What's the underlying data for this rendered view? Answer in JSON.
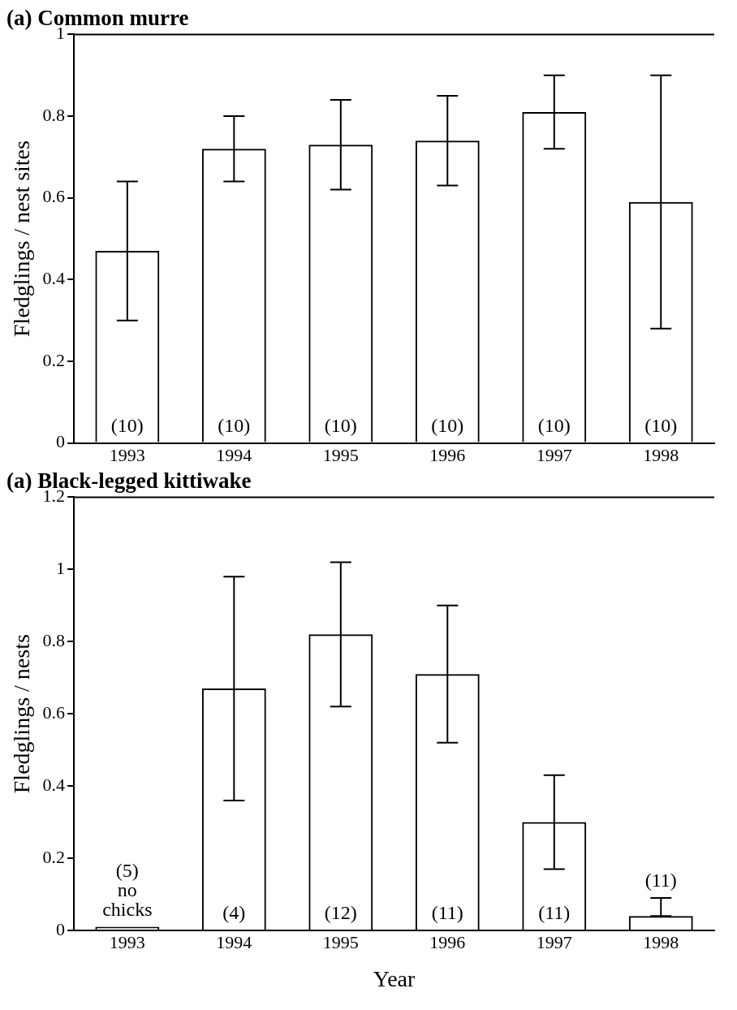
{
  "chart_data": [
    {
      "type": "bar",
      "title": "(a) Common murre",
      "ylabel": "Fledglings / nest sites",
      "categories": [
        "1993",
        "1994",
        "1995",
        "1996",
        "1997",
        "1998"
      ],
      "values": [
        0.47,
        0.72,
        0.73,
        0.74,
        0.81,
        0.59
      ],
      "color": "#000000",
      "errors": [
        [
          0.3,
          0.64
        ],
        [
          0.64,
          0.8
        ],
        [
          0.62,
          0.84
        ],
        [
          0.63,
          0.85
        ],
        [
          0.72,
          0.9
        ],
        [
          0.28,
          0.9
        ]
      ],
      "annotations": [
        "(10)",
        "(10)",
        "(10)",
        "(10)",
        "(10)",
        "(10)"
      ],
      "ylim": [
        0,
        1
      ],
      "yticks": [
        0,
        0.2,
        0.4,
        0.6,
        0.8,
        1
      ],
      "grid": false,
      "legend": false
    },
    {
      "type": "bar",
      "title": "(a) Black-legged kittiwake",
      "ylabel": "Fledglings / nests",
      "xlabel": "Year",
      "categories": [
        "1993",
        "1994",
        "1995",
        "1996",
        "1997",
        "1998"
      ],
      "values": [
        0.01,
        0.67,
        0.82,
        0.71,
        0.3,
        0.04
      ],
      "color": "#000000",
      "errors": [
        null,
        [
          0.36,
          0.98
        ],
        [
          0.62,
          1.02
        ],
        [
          0.52,
          0.9
        ],
        [
          0.17,
          0.43
        ],
        [
          0.04,
          0.09
        ]
      ],
      "annotations": [
        "(5) no chicks",
        "(4)",
        "(12)",
        "(11)",
        "(11)",
        "(11)"
      ],
      "ylim": [
        0,
        1.2
      ],
      "yticks": [
        0,
        0.2,
        0.4,
        0.6,
        0.8,
        1,
        1.2
      ],
      "grid": false,
      "legend": false
    }
  ]
}
